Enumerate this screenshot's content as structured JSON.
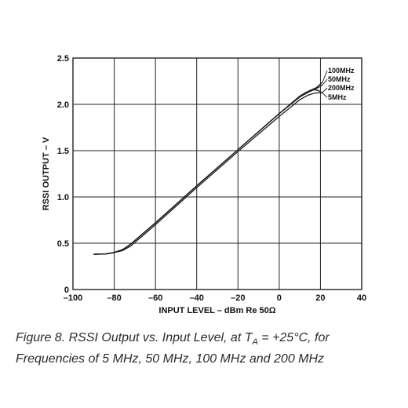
{
  "chart_data": {
    "type": "line",
    "title": "",
    "xlabel": "INPUT LEVEL – dBm Re 50Ω",
    "ylabel": "RSSI OUTPUT – V",
    "xlim": [
      -100,
      40
    ],
    "ylim": [
      0,
      2.5
    ],
    "x_ticks": [
      -100,
      -80,
      -60,
      -40,
      -20,
      0,
      20,
      40
    ],
    "x_tick_labels": [
      "–100",
      "–80",
      "–60",
      "–40",
      "–20",
      "0",
      "20",
      "40"
    ],
    "y_ticks": [
      0,
      0.5,
      1.0,
      1.5,
      2.0,
      2.5
    ],
    "y_tick_labels": [
      "0",
      "0.5",
      "1.0",
      "1.5",
      "2.0",
      "2.5"
    ],
    "grid": true,
    "legend": "inline labels at top-right",
    "series": [
      {
        "name": "100MHz",
        "x": [
          -90,
          -84,
          -80,
          -76,
          -72,
          -60,
          -40,
          -20,
          0,
          10,
          14,
          18,
          21
        ],
        "y": [
          0.38,
          0.385,
          0.4,
          0.43,
          0.49,
          0.72,
          1.12,
          1.51,
          1.9,
          2.08,
          2.14,
          2.18,
          2.24
        ]
      },
      {
        "name": "50MHz",
        "x": [
          -90,
          -84,
          -80,
          -76,
          -72,
          -60,
          -40,
          -20,
          0,
          10,
          14,
          18,
          21
        ],
        "y": [
          0.38,
          0.385,
          0.4,
          0.43,
          0.49,
          0.72,
          1.12,
          1.51,
          1.9,
          2.08,
          2.13,
          2.17,
          2.21
        ]
      },
      {
        "name": "200MHz",
        "x": [
          -90,
          -84,
          -80,
          -76,
          -72,
          -60,
          -40,
          -20,
          0,
          10,
          14,
          17,
          21
        ],
        "y": [
          0.38,
          0.385,
          0.4,
          0.42,
          0.47,
          0.7,
          1.1,
          1.49,
          1.87,
          2.05,
          2.1,
          2.12,
          2.13
        ]
      },
      {
        "name": "5MHz",
        "x": [
          -90,
          -84,
          -80,
          -76,
          -72,
          -60,
          -40,
          -20,
          0,
          10,
          13,
          16,
          19,
          21
        ],
        "y": [
          0.38,
          0.385,
          0.4,
          0.43,
          0.49,
          0.72,
          1.12,
          1.51,
          1.9,
          2.09,
          2.13,
          2.16,
          2.15,
          2.12
        ]
      }
    ]
  },
  "caption": {
    "prefix": "Figure 8.  RSSI Output vs. Input Level, at T",
    "subscript": "A",
    "suffix": " = +25°C, for Frequencies of 5 MHz, 50 MHz, 100 MHz and 200 MHz"
  },
  "colors": {
    "line": "#1a1a1a",
    "grid": "#222222",
    "text": "#111111"
  }
}
